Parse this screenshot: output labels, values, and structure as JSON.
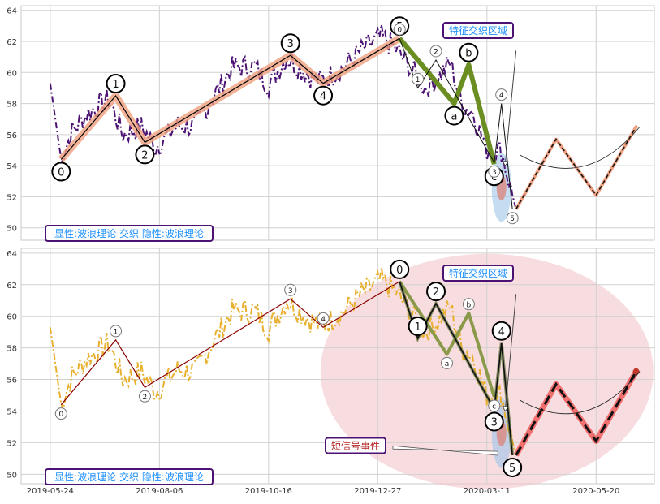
{
  "chart_data": [
    {
      "type": "line",
      "panel": "top",
      "ylim": [
        49.2,
        64.3
      ],
      "yticks": [
        50,
        52,
        54,
        56,
        58,
        60,
        62,
        64
      ],
      "grid": true,
      "labels": {
        "legend_box": "显性:波浪理论 交织 隐性:波浪理论",
        "zone_label": "特征交织区域"
      },
      "colors": {
        "price": "#4b1273",
        "primary_wave": "#f0a080",
        "secondary_wave": "#6b8e23",
        "forecast": "#f0a080",
        "zone_border": "#4b1273",
        "zone_text": "#1e90ff"
      },
      "price_anchors": [
        [
          0,
          59.3
        ],
        [
          3,
          54.4
        ],
        [
          6,
          56.2
        ],
        [
          10,
          57.3
        ],
        [
          16,
          58.3
        ],
        [
          20,
          56.0
        ],
        [
          25,
          56.5
        ],
        [
          29,
          55.2
        ],
        [
          35,
          56.6
        ],
        [
          40,
          56.5
        ],
        [
          45,
          58.5
        ],
        [
          50,
          60.3
        ],
        [
          56,
          60.4
        ],
        [
          60,
          59.2
        ],
        [
          65,
          61.0
        ],
        [
          70,
          60.0
        ],
        [
          74,
          59.4
        ],
        [
          80,
          60.2
        ],
        [
          86,
          61.5
        ],
        [
          91,
          62.3
        ],
        [
          95,
          61.5
        ],
        [
          100,
          60.0
        ],
        [
          103,
          59.0
        ],
        [
          107,
          59.8
        ],
        [
          110,
          60.6
        ],
        [
          113,
          58.0
        ],
        [
          116,
          57.5
        ],
        [
          120,
          55.0
        ],
        [
          124,
          55.0
        ],
        [
          126,
          53.0
        ],
        [
          128,
          51.2
        ]
      ],
      "wave_primary": [
        {
          "x": 3,
          "y": 54.4,
          "label": "0"
        },
        {
          "x": 18,
          "y": 58.5,
          "label": "1"
        },
        {
          "x": 26,
          "y": 55.5,
          "label": "2"
        },
        {
          "x": 66,
          "y": 61.1,
          "label": "3"
        },
        {
          "x": 75,
          "y": 59.3,
          "label": "4"
        },
        {
          "x": 96,
          "y": 62.2,
          "label": "5"
        }
      ],
      "wave_secondary": [
        {
          "x": 96,
          "y": 62.2,
          "label": ""
        },
        {
          "x": 111,
          "y": 58.0,
          "label": "a"
        },
        {
          "x": 115,
          "y": 60.5,
          "label": "b"
        },
        {
          "x": 122,
          "y": 54.1,
          "label": "c"
        }
      ],
      "wave_minor": [
        {
          "x": 96,
          "y": 62.2,
          "label": "0"
        },
        {
          "x": 101,
          "y": 59.0,
          "label": "1"
        },
        {
          "x": 106,
          "y": 60.8,
          "label": "2"
        },
        {
          "x": 122,
          "y": 54.2,
          "label": "3"
        },
        {
          "x": 124,
          "y": 58.0,
          "label": "4"
        },
        {
          "x": 127,
          "y": 51.2,
          "label": "5"
        }
      ],
      "forecast": [
        [
          128,
          51.2
        ],
        [
          139,
          55.7
        ],
        [
          150,
          52.1
        ],
        [
          161,
          56.5
        ]
      ]
    },
    {
      "type": "line",
      "panel": "bottom",
      "ylim": [
        49.4,
        64.3
      ],
      "yticks": [
        50,
        52,
        54,
        56,
        58,
        60,
        62,
        64
      ],
      "grid": true,
      "labels": {
        "legend_box": "显性:波浪理论 交织 隐性:波浪理论",
        "zone_label": "特征交织区域",
        "event_label": "短信号事件"
      },
      "colors": {
        "price": "#e8b030",
        "primary_wave": "#8b0000",
        "secondary_wave": "#8a9a4a",
        "forecast": "#f07070",
        "zone_border": "#4b1273",
        "zone_text": "#1e90ff",
        "event_text": "#b22222",
        "highlight_ellipse": "#f4c6cc"
      },
      "price_anchors": [
        [
          0,
          59.3
        ],
        [
          3,
          54.4
        ],
        [
          6,
          56.2
        ],
        [
          10,
          57.3
        ],
        [
          16,
          58.3
        ],
        [
          20,
          56.0
        ],
        [
          25,
          56.5
        ],
        [
          29,
          55.2
        ],
        [
          35,
          56.6
        ],
        [
          40,
          56.5
        ],
        [
          45,
          58.5
        ],
        [
          50,
          60.3
        ],
        [
          56,
          60.4
        ],
        [
          60,
          59.2
        ],
        [
          65,
          61.0
        ],
        [
          70,
          60.0
        ],
        [
          74,
          59.4
        ],
        [
          80,
          60.2
        ],
        [
          86,
          61.5
        ],
        [
          91,
          62.3
        ],
        [
          95,
          61.5
        ],
        [
          100,
          60.0
        ],
        [
          103,
          59.0
        ],
        [
          107,
          59.8
        ],
        [
          110,
          60.6
        ],
        [
          113,
          58.0
        ],
        [
          116,
          57.5
        ],
        [
          120,
          55.0
        ],
        [
          124,
          55.0
        ],
        [
          126,
          53.0
        ],
        [
          128,
          51.2
        ]
      ],
      "wave_primary": [
        {
          "x": 3,
          "y": 54.4,
          "label": "0"
        },
        {
          "x": 18,
          "y": 58.5,
          "label": "1"
        },
        {
          "x": 26,
          "y": 55.5,
          "label": "2"
        },
        {
          "x": 66,
          "y": 61.1,
          "label": "3"
        },
        {
          "x": 75,
          "y": 59.3,
          "label": "4"
        },
        {
          "x": 96,
          "y": 62.2,
          "label": ""
        }
      ],
      "wave_secondary": [
        {
          "x": 96,
          "y": 62.2,
          "label": ""
        },
        {
          "x": 109,
          "y": 57.6,
          "label": "a"
        },
        {
          "x": 115,
          "y": 60.2,
          "label": "b"
        },
        {
          "x": 122,
          "y": 54.9,
          "label": "c"
        }
      ],
      "wave_minor": [
        {
          "x": 96,
          "y": 62.2,
          "label": "0"
        },
        {
          "x": 101,
          "y": 58.6,
          "label": "1"
        },
        {
          "x": 106,
          "y": 60.8,
          "label": "2"
        },
        {
          "x": 122,
          "y": 54.1,
          "label": "3"
        },
        {
          "x": 124,
          "y": 58.3,
          "label": "4"
        },
        {
          "x": 127,
          "y": 51.2,
          "label": "5"
        }
      ],
      "forecast": [
        [
          128,
          51.2
        ],
        [
          139,
          55.7
        ],
        [
          150,
          52.1
        ],
        [
          161,
          56.5
        ]
      ]
    }
  ],
  "x_axis": {
    "tick_labels": [
      "2019-05-24",
      "2019-08-06",
      "2019-10-16",
      "2019-12-27",
      "2020-03-11",
      "2020-05-20"
    ],
    "tick_positions": [
      0,
      30,
      60,
      90,
      120,
      150
    ]
  }
}
